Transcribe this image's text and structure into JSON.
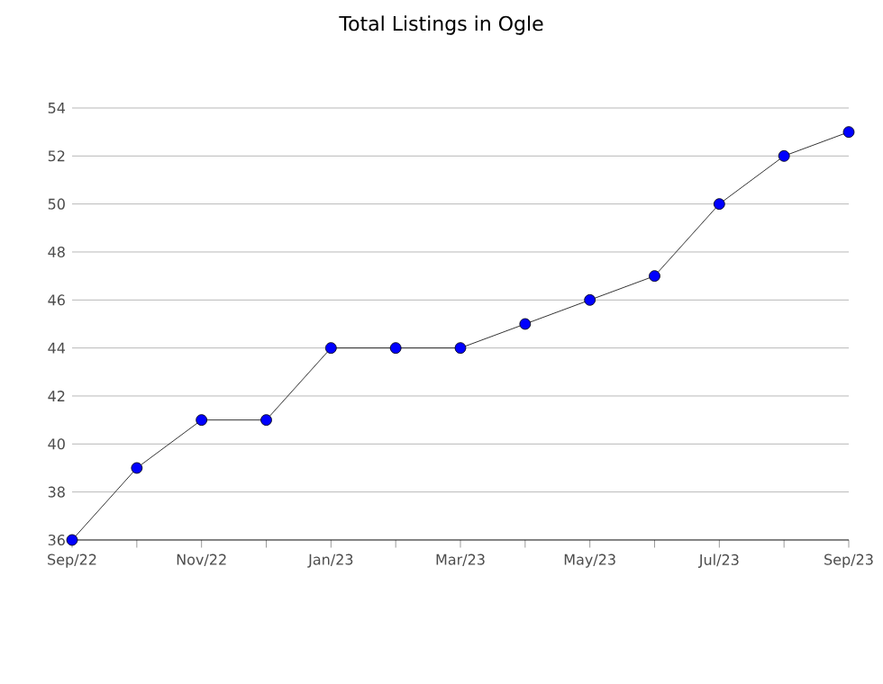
{
  "chart_data": {
    "type": "line",
    "title": "Total Listings in Ogle",
    "categories": [
      "Sep/22",
      null,
      "Nov/22",
      null,
      "Jan/23",
      null,
      "Mar/23",
      null,
      "May/23",
      null,
      "Jul/23",
      null,
      "Sep/23"
    ],
    "series": [
      {
        "color": "#0000ff",
        "values": [
          36,
          39,
          41,
          41,
          44,
          44,
          44,
          45,
          46,
          47,
          50,
          52,
          53
        ]
      }
    ],
    "ylim": [
      36,
      54
    ],
    "yticks": [
      36,
      38,
      40,
      42,
      44,
      46,
      48,
      50,
      52,
      54
    ],
    "grid": "y",
    "marker": "circle",
    "line_style": "solid"
  }
}
